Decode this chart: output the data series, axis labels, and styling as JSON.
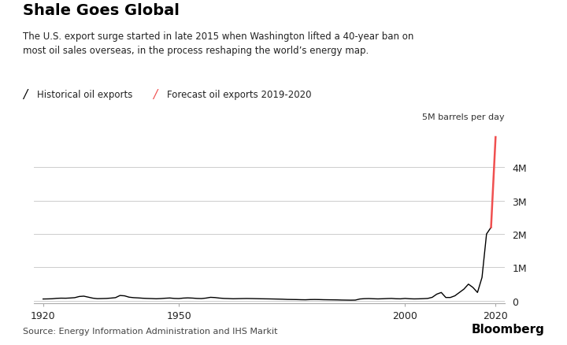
{
  "title": "Shale Goes Global",
  "subtitle": "The U.S. export surge started in late 2015 when Washington lifted a 40-year ban on\nmost oil sales overseas, in the process reshaping the world’s energy map.",
  "legend_historical": "Historical oil exports",
  "legend_forecast": "Forecast oil exports 2019-2020",
  "ylabel_annotation": "5M barrels per day",
  "source_text": "Source: Energy Information Administration and IHS Markit",
  "bloomberg_text": "Bloomberg",
  "hist_color": "#000000",
  "forecast_color": "#f05050",
  "bg_color": "#ffffff",
  "grid_color": "#cccccc",
  "xlim": [
    1918,
    2022
  ],
  "ylim": [
    -80000,
    5300000
  ],
  "yticks": [
    0,
    1000000,
    2000000,
    3000000,
    4000000
  ],
  "ytick_labels": [
    "0",
    "1M",
    "2M",
    "3M",
    "4M"
  ],
  "xticks": [
    1920,
    1950,
    2000,
    2020
  ],
  "historical_data": {
    "years": [
      1920,
      1921,
      1922,
      1923,
      1924,
      1925,
      1926,
      1927,
      1928,
      1929,
      1930,
      1931,
      1932,
      1933,
      1934,
      1935,
      1936,
      1937,
      1938,
      1939,
      1940,
      1941,
      1942,
      1943,
      1944,
      1945,
      1946,
      1947,
      1948,
      1949,
      1950,
      1951,
      1952,
      1953,
      1954,
      1955,
      1956,
      1957,
      1958,
      1959,
      1960,
      1961,
      1962,
      1963,
      1964,
      1965,
      1966,
      1967,
      1968,
      1969,
      1970,
      1971,
      1972,
      1973,
      1974,
      1975,
      1976,
      1977,
      1978,
      1979,
      1980,
      1981,
      1982,
      1983,
      1984,
      1985,
      1986,
      1987,
      1988,
      1989,
      1990,
      1991,
      1992,
      1993,
      1994,
      1995,
      1996,
      1997,
      1998,
      1999,
      2000,
      2001,
      2002,
      2003,
      2004,
      2005,
      2006,
      2007,
      2008,
      2009,
      2010,
      2011,
      2012,
      2013,
      2014,
      2015,
      2016,
      2017,
      2018,
      2019
    ],
    "values": [
      55000,
      58000,
      62000,
      75000,
      80000,
      78000,
      85000,
      95000,
      130000,
      140000,
      110000,
      80000,
      65000,
      68000,
      72000,
      82000,
      95000,
      160000,
      150000,
      110000,
      95000,
      88000,
      78000,
      72000,
      68000,
      62000,
      68000,
      78000,
      85000,
      72000,
      68000,
      82000,
      88000,
      82000,
      72000,
      68000,
      82000,
      105000,
      98000,
      82000,
      72000,
      68000,
      62000,
      65000,
      68000,
      70000,
      68000,
      65000,
      62000,
      60000,
      58000,
      55000,
      52000,
      48000,
      42000,
      40000,
      38000,
      34000,
      32000,
      38000,
      40000,
      38000,
      34000,
      32000,
      30000,
      28000,
      24000,
      22000,
      20000,
      22000,
      55000,
      65000,
      68000,
      62000,
      58000,
      62000,
      68000,
      72000,
      62000,
      60000,
      72000,
      62000,
      58000,
      60000,
      65000,
      72000,
      105000,
      200000,
      250000,
      100000,
      100000,
      150000,
      250000,
      350000,
      500000,
      400000,
      250000,
      700000,
      2000000,
      2200000
    ]
  },
  "forecast_data": {
    "years": [
      2019,
      2020
    ],
    "values": [
      2200000,
      4900000
    ]
  }
}
